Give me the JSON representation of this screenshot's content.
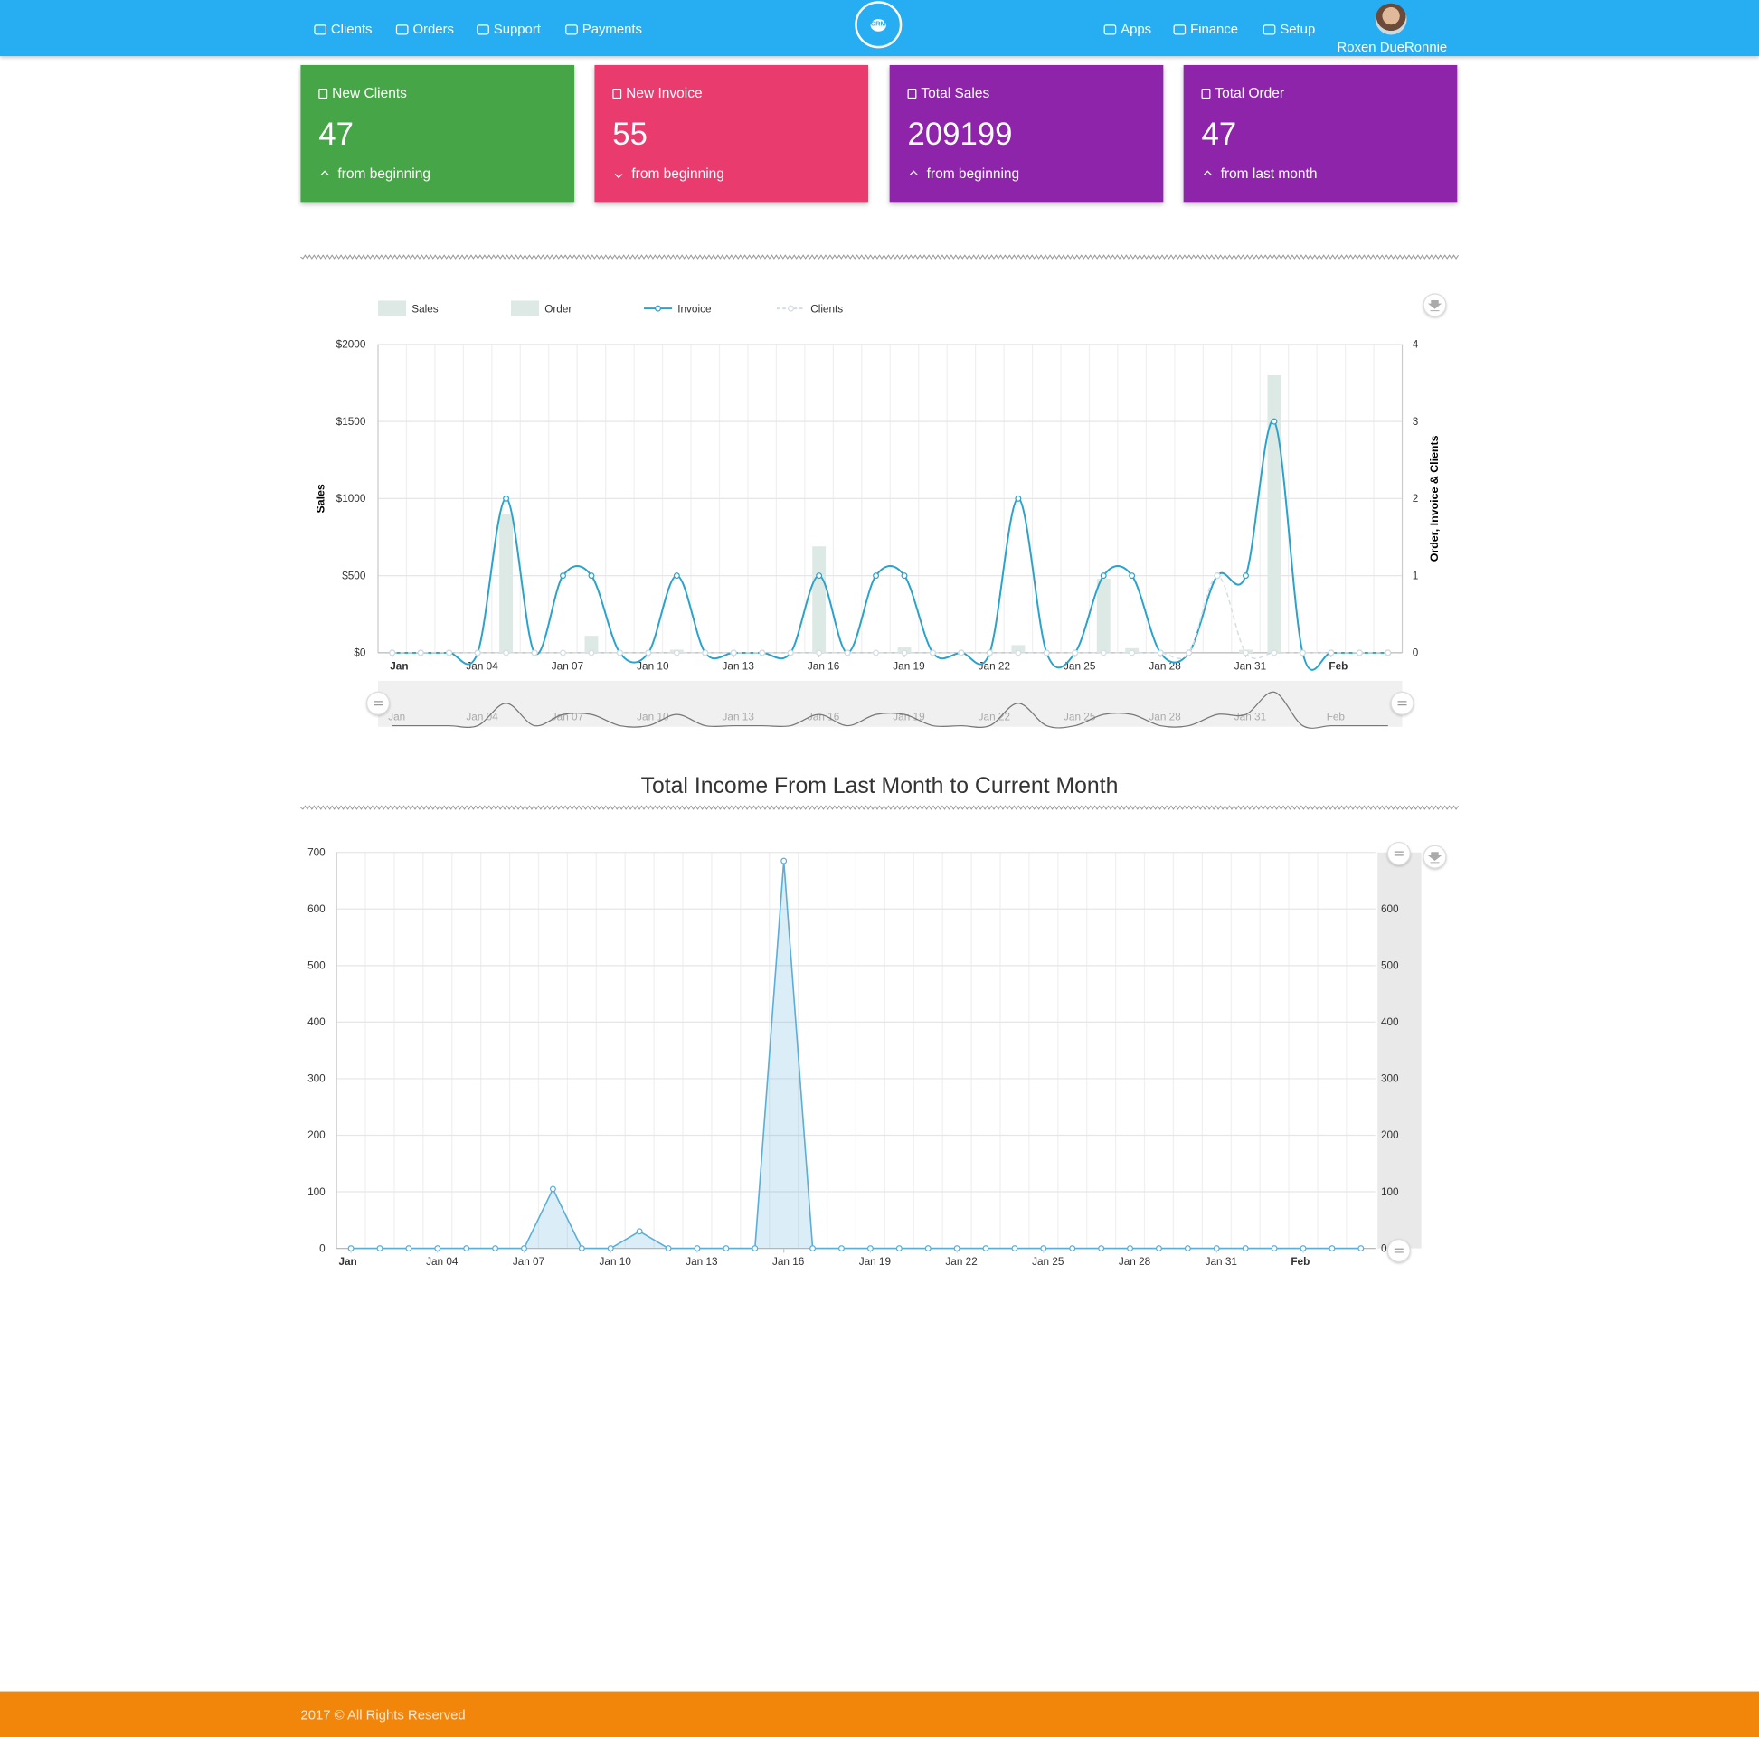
{
  "nav": {
    "left": [
      "Clients",
      "Orders",
      "Support",
      "Payments"
    ],
    "logo": "CRM",
    "right": [
      "Apps",
      "Finance",
      "Setup"
    ],
    "user": "Roxen DueRonnie"
  },
  "cards": [
    {
      "title": "New Clients",
      "value": 47,
      "note": "from beginning",
      "trend": "up",
      "color": "#46a546"
    },
    {
      "title": "New Invoice",
      "value": 55,
      "note": "from beginning",
      "trend": "down",
      "color": "#ea3b6e"
    },
    {
      "title": "Total Sales",
      "value": 209199,
      "note": "from beginning",
      "trend": "up",
      "color": "#8e24aa"
    },
    {
      "title": "Total Order",
      "value": 47,
      "note": "from last month",
      "trend": "up",
      "color": "#8e24aa"
    }
  ],
  "chart_data": [
    {
      "type": "combo",
      "y_label": "Sales",
      "y2_label": "Order, Invoice & Clients",
      "x": [
        1,
        2,
        3,
        4,
        5,
        6,
        7,
        8,
        9,
        10,
        11,
        12,
        13,
        14,
        15,
        16,
        17,
        18,
        19,
        20,
        21,
        22,
        23,
        24,
        25,
        26,
        27,
        28,
        29,
        30,
        31,
        32,
        33,
        34,
        35,
        36
      ],
      "xlim": [
        0.5,
        36.5
      ],
      "xticks": [
        {
          "value": 1,
          "label": "Jan"
        },
        {
          "value": 4,
          "label": "Jan 04"
        },
        {
          "value": 7,
          "label": "Jan 07"
        },
        {
          "value": 10,
          "label": "Jan 10"
        },
        {
          "value": 13,
          "label": "Jan 13"
        },
        {
          "value": 16,
          "label": "Jan 16"
        },
        {
          "value": 19,
          "label": "Jan 19"
        },
        {
          "value": 22,
          "label": "Jan 22"
        },
        {
          "value": 25,
          "label": "Jan 25"
        },
        {
          "value": 28,
          "label": "Jan 28"
        },
        {
          "value": 31,
          "label": "Jan 31"
        },
        {
          "value": 34,
          "label": "Feb"
        }
      ],
      "ylim": [
        0,
        2000
      ],
      "yticks": [
        {
          "value": 0,
          "label": "$0"
        },
        {
          "value": 500,
          "label": "$500"
        },
        {
          "value": 1000,
          "label": "$1000"
        },
        {
          "value": 1500,
          "label": "$1500"
        },
        {
          "value": 2000,
          "label": "$2000"
        }
      ],
      "y2lim": [
        0,
        4
      ],
      "y2ticks": [
        0,
        1,
        2,
        3,
        4
      ],
      "grid": true,
      "series": [
        {
          "name": "Sales",
          "type": "bar",
          "color": "#dde9e4",
          "values": [
            0,
            0,
            0,
            0,
            900,
            0,
            0,
            110,
            0,
            0,
            20,
            0,
            0,
            0,
            0,
            690,
            0,
            0,
            40,
            0,
            0,
            0,
            50,
            0,
            0,
            480,
            30,
            0,
            0,
            0,
            20,
            1800,
            0,
            0,
            0,
            0
          ]
        },
        {
          "name": "Order",
          "type": "bar",
          "axis": "y2",
          "color": "#dde9e4",
          "values": [
            0,
            0,
            0,
            0,
            0,
            0,
            0,
            0,
            0,
            0,
            0,
            0,
            0,
            0,
            0,
            0,
            0,
            0,
            0,
            0,
            0,
            0,
            0,
            0,
            0,
            0,
            0,
            0,
            0,
            0,
            0,
            0,
            0,
            0,
            0,
            0
          ]
        },
        {
          "name": "Invoice",
          "type": "line",
          "axis": "y2",
          "color": "#2aa3cc",
          "values": [
            0,
            0,
            0,
            0,
            2,
            0,
            1,
            1,
            0,
            0,
            1,
            0,
            0,
            0,
            0,
            1,
            0,
            1,
            1,
            0,
            0,
            0,
            2,
            0,
            0,
            1,
            1,
            0,
            0,
            1,
            1,
            3,
            0,
            0,
            0,
            0
          ]
        },
        {
          "name": "Clients",
          "type": "line",
          "axis": "y2",
          "dashed": true,
          "color": "#d5dde2",
          "values": [
            0,
            0,
            0,
            0,
            0,
            0,
            0,
            0,
            0,
            0,
            0,
            0,
            0,
            0,
            0,
            0,
            0,
            0,
            0,
            0,
            0,
            0,
            0,
            0,
            0,
            0,
            0,
            0,
            0,
            1,
            0,
            0,
            0,
            0,
            0,
            0
          ]
        }
      ]
    },
    {
      "type": "area",
      "title": "Total Income From Last Month to Current Month",
      "x": [
        1,
        2,
        3,
        4,
        5,
        6,
        7,
        8,
        9,
        10,
        11,
        12,
        13,
        14,
        15,
        16,
        17,
        18,
        19,
        20,
        21,
        22,
        23,
        24,
        25,
        26,
        27,
        28,
        29,
        30,
        31,
        32,
        33,
        34,
        35,
        36
      ],
      "xlim": [
        0.5,
        36.5
      ],
      "xticks": [
        {
          "value": 1,
          "label": "Jan"
        },
        {
          "value": 4,
          "label": "Jan 04"
        },
        {
          "value": 7,
          "label": "Jan 07"
        },
        {
          "value": 10,
          "label": "Jan 10"
        },
        {
          "value": 13,
          "label": "Jan 13"
        },
        {
          "value": 16,
          "label": "Jan 16"
        },
        {
          "value": 19,
          "label": "Jan 19"
        },
        {
          "value": 22,
          "label": "Jan 22"
        },
        {
          "value": 25,
          "label": "Jan 25"
        },
        {
          "value": 28,
          "label": "Jan 28"
        },
        {
          "value": 31,
          "label": "Jan 31"
        },
        {
          "value": 34,
          "label": "Feb"
        }
      ],
      "ylim": [
        0,
        700
      ],
      "yticks": [
        0,
        100,
        200,
        300,
        400,
        500,
        600,
        700
      ],
      "y2lim": [
        0,
        700
      ],
      "y2ticks": [
        0,
        100,
        200,
        300,
        400,
        500,
        600
      ],
      "grid": true,
      "color": "#5aaed8",
      "values": [
        0,
        0,
        0,
        0,
        0,
        0,
        0,
        105,
        0,
        0,
        30,
        0,
        0,
        0,
        0,
        685,
        0,
        0,
        0,
        0,
        0,
        0,
        0,
        0,
        0,
        0,
        0,
        0,
        0,
        0,
        0,
        0,
        0,
        0,
        0,
        0
      ]
    }
  ],
  "footer": "2017 © All Rights Reserved"
}
